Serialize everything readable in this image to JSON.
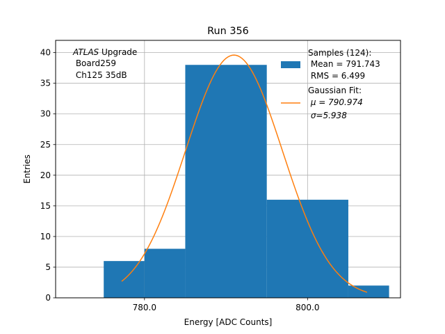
{
  "chart_data": {
    "type": "bar",
    "title": "Run 356",
    "xlabel": "Energy [ADC Counts]",
    "ylabel": "Entries",
    "xlim": [
      769.1,
      811.4
    ],
    "ylim": [
      0,
      42
    ],
    "grid": true,
    "x_ticks": [
      780.0,
      800.0
    ],
    "x_tick_labels": [
      "780.0",
      "800.0"
    ],
    "y_ticks": [
      0,
      5,
      10,
      15,
      20,
      25,
      30,
      35,
      40
    ],
    "y_tick_labels": [
      "0",
      "5",
      "10",
      "15",
      "20",
      "25",
      "30",
      "35",
      "40"
    ],
    "bins": [
      {
        "x0": 775.0,
        "x1": 780.0,
        "count": 6
      },
      {
        "x0": 780.0,
        "x1": 785.0,
        "count": 8
      },
      {
        "x0": 785.0,
        "x1": 795.0,
        "count": 38
      },
      {
        "x0": 795.0,
        "x1": 805.0,
        "count": 16
      },
      {
        "x0": 805.0,
        "x1": 810.0,
        "count": 2
      }
    ],
    "fit": {
      "type": "gaussian",
      "mu": 790.974,
      "sigma": 5.938,
      "amplitude": 39.6,
      "x_range": [
        777.2,
        807.3
      ]
    },
    "annotation_lines": [
      "ATLAS Upgrade",
      " Board259",
      " Ch125 35dB"
    ],
    "legend": {
      "location": "upper right",
      "entries": [
        {
          "series": "histogram",
          "lines": [
            "Samples (124):",
            " Mean = 791.743",
            " RMS = 6.499"
          ]
        },
        {
          "series": "fit",
          "lines": [
            "Gaussian Fit:",
            " μ = 790.974",
            " σ=5.938"
          ]
        }
      ]
    },
    "colors": {
      "bars": "#1f77b4",
      "fit": "#ff7f0e",
      "grid": "#b0b0b0"
    }
  }
}
